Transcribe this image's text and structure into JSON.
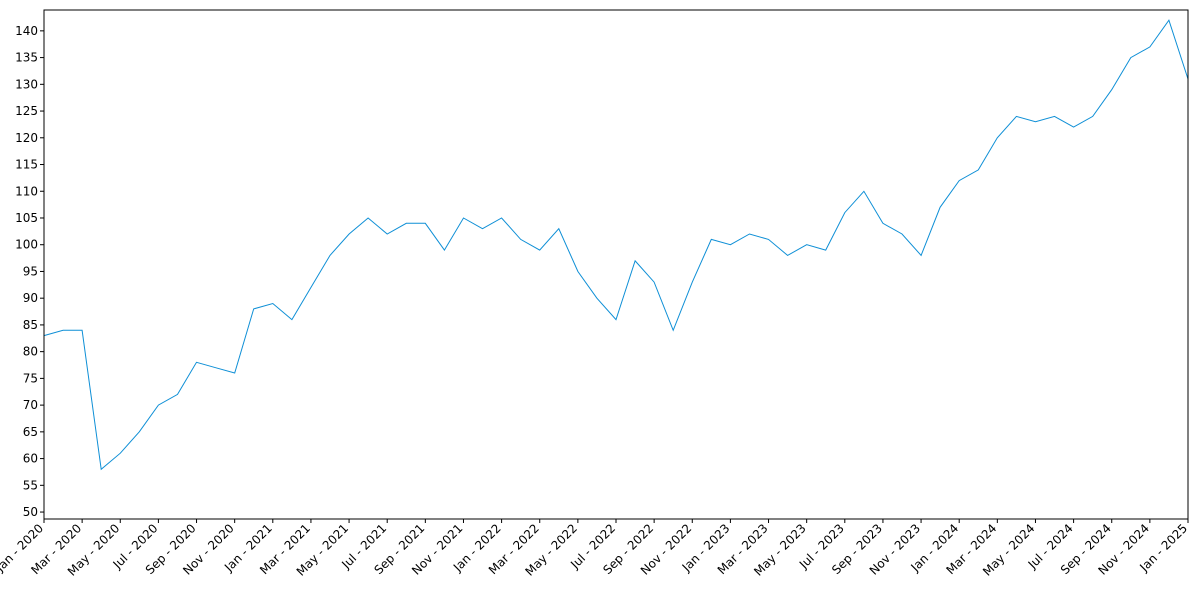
{
  "chart_data": {
    "type": "line",
    "x": [
      "2020-01",
      "2020-02",
      "2020-03",
      "2020-04",
      "2020-05",
      "2020-06",
      "2020-07",
      "2020-08",
      "2020-09",
      "2020-10",
      "2020-11",
      "2020-12",
      "2021-01",
      "2021-02",
      "2021-03",
      "2021-04",
      "2021-05",
      "2021-06",
      "2021-07",
      "2021-08",
      "2021-09",
      "2021-10",
      "2021-11",
      "2021-12",
      "2022-01",
      "2022-02",
      "2022-03",
      "2022-04",
      "2022-05",
      "2022-06",
      "2022-07",
      "2022-08",
      "2022-09",
      "2022-10",
      "2022-11",
      "2022-12",
      "2023-01",
      "2023-02",
      "2023-03",
      "2023-04",
      "2023-05",
      "2023-06",
      "2023-07",
      "2023-08",
      "2023-09",
      "2023-10",
      "2023-11",
      "2023-12",
      "2024-01",
      "2024-02",
      "2024-03",
      "2024-04",
      "2024-05",
      "2024-06",
      "2024-07",
      "2024-08",
      "2024-09",
      "2024-10",
      "2024-11",
      "2024-12",
      "2025-01"
    ],
    "series": [
      {
        "color": "#0e8fd6",
        "values": [
          83,
          84,
          84,
          58,
          61,
          65,
          70,
          72,
          78,
          77,
          76,
          88,
          89,
          86,
          92,
          98,
          102,
          105,
          102,
          104,
          104,
          99,
          105,
          103,
          105,
          101,
          99,
          103,
          95,
          90,
          86,
          97,
          93,
          84,
          93,
          101,
          100,
          102,
          101,
          98,
          100,
          99,
          106,
          110,
          104,
          102,
          98,
          107,
          112,
          114,
          120,
          124,
          123,
          124,
          122,
          124,
          129,
          135,
          137,
          142,
          131
        ]
      }
    ],
    "xlim": [
      "2020-01",
      "2025-01"
    ],
    "xticks": [
      {
        "value": "2020-01",
        "label": "Jan - 2020"
      },
      {
        "value": "2020-03",
        "label": "Mar - 2020"
      },
      {
        "value": "2020-05",
        "label": "May - 2020"
      },
      {
        "value": "2020-07",
        "label": "Jul - 2020"
      },
      {
        "value": "2020-09",
        "label": "Sep - 2020"
      },
      {
        "value": "2020-11",
        "label": "Nov - 2020"
      },
      {
        "value": "2021-01",
        "label": "Jan - 2021"
      },
      {
        "value": "2021-03",
        "label": "Mar - 2021"
      },
      {
        "value": "2021-05",
        "label": "May - 2021"
      },
      {
        "value": "2021-07",
        "label": "Jul - 2021"
      },
      {
        "value": "2021-09",
        "label": "Sep - 2021"
      },
      {
        "value": "2021-11",
        "label": "Nov - 2021"
      },
      {
        "value": "2022-01",
        "label": "Jan - 2022"
      },
      {
        "value": "2022-03",
        "label": "Mar - 2022"
      },
      {
        "value": "2022-05",
        "label": "May - 2022"
      },
      {
        "value": "2022-07",
        "label": "Jul - 2022"
      },
      {
        "value": "2022-09",
        "label": "Sep - 2022"
      },
      {
        "value": "2022-11",
        "label": "Nov - 2022"
      },
      {
        "value": "2023-01",
        "label": "Jan - 2023"
      },
      {
        "value": "2023-03",
        "label": "Mar - 2023"
      },
      {
        "value": "2023-05",
        "label": "May - 2023"
      },
      {
        "value": "2023-07",
        "label": "Jul - 2023"
      },
      {
        "value": "2023-09",
        "label": "Sep - 2023"
      },
      {
        "value": "2023-11",
        "label": "Nov - 2023"
      },
      {
        "value": "2024-01",
        "label": "Jan - 2024"
      },
      {
        "value": "2024-03",
        "label": "Mar - 2024"
      },
      {
        "value": "2024-05",
        "label": "May - 2024"
      },
      {
        "value": "2024-07",
        "label": "Jul - 2024"
      },
      {
        "value": "2024-09",
        "label": "Sep - 2024"
      },
      {
        "value": "2024-11",
        "label": "Nov - 2024"
      },
      {
        "value": "2025-01",
        "label": "Jan - 2025"
      }
    ],
    "ylim": [
      48.7,
      143.9
    ],
    "yticks": [
      50,
      55,
      60,
      65,
      70,
      75,
      80,
      85,
      90,
      95,
      100,
      105,
      110,
      115,
      120,
      125,
      130,
      135,
      140
    ],
    "grid": false
  }
}
